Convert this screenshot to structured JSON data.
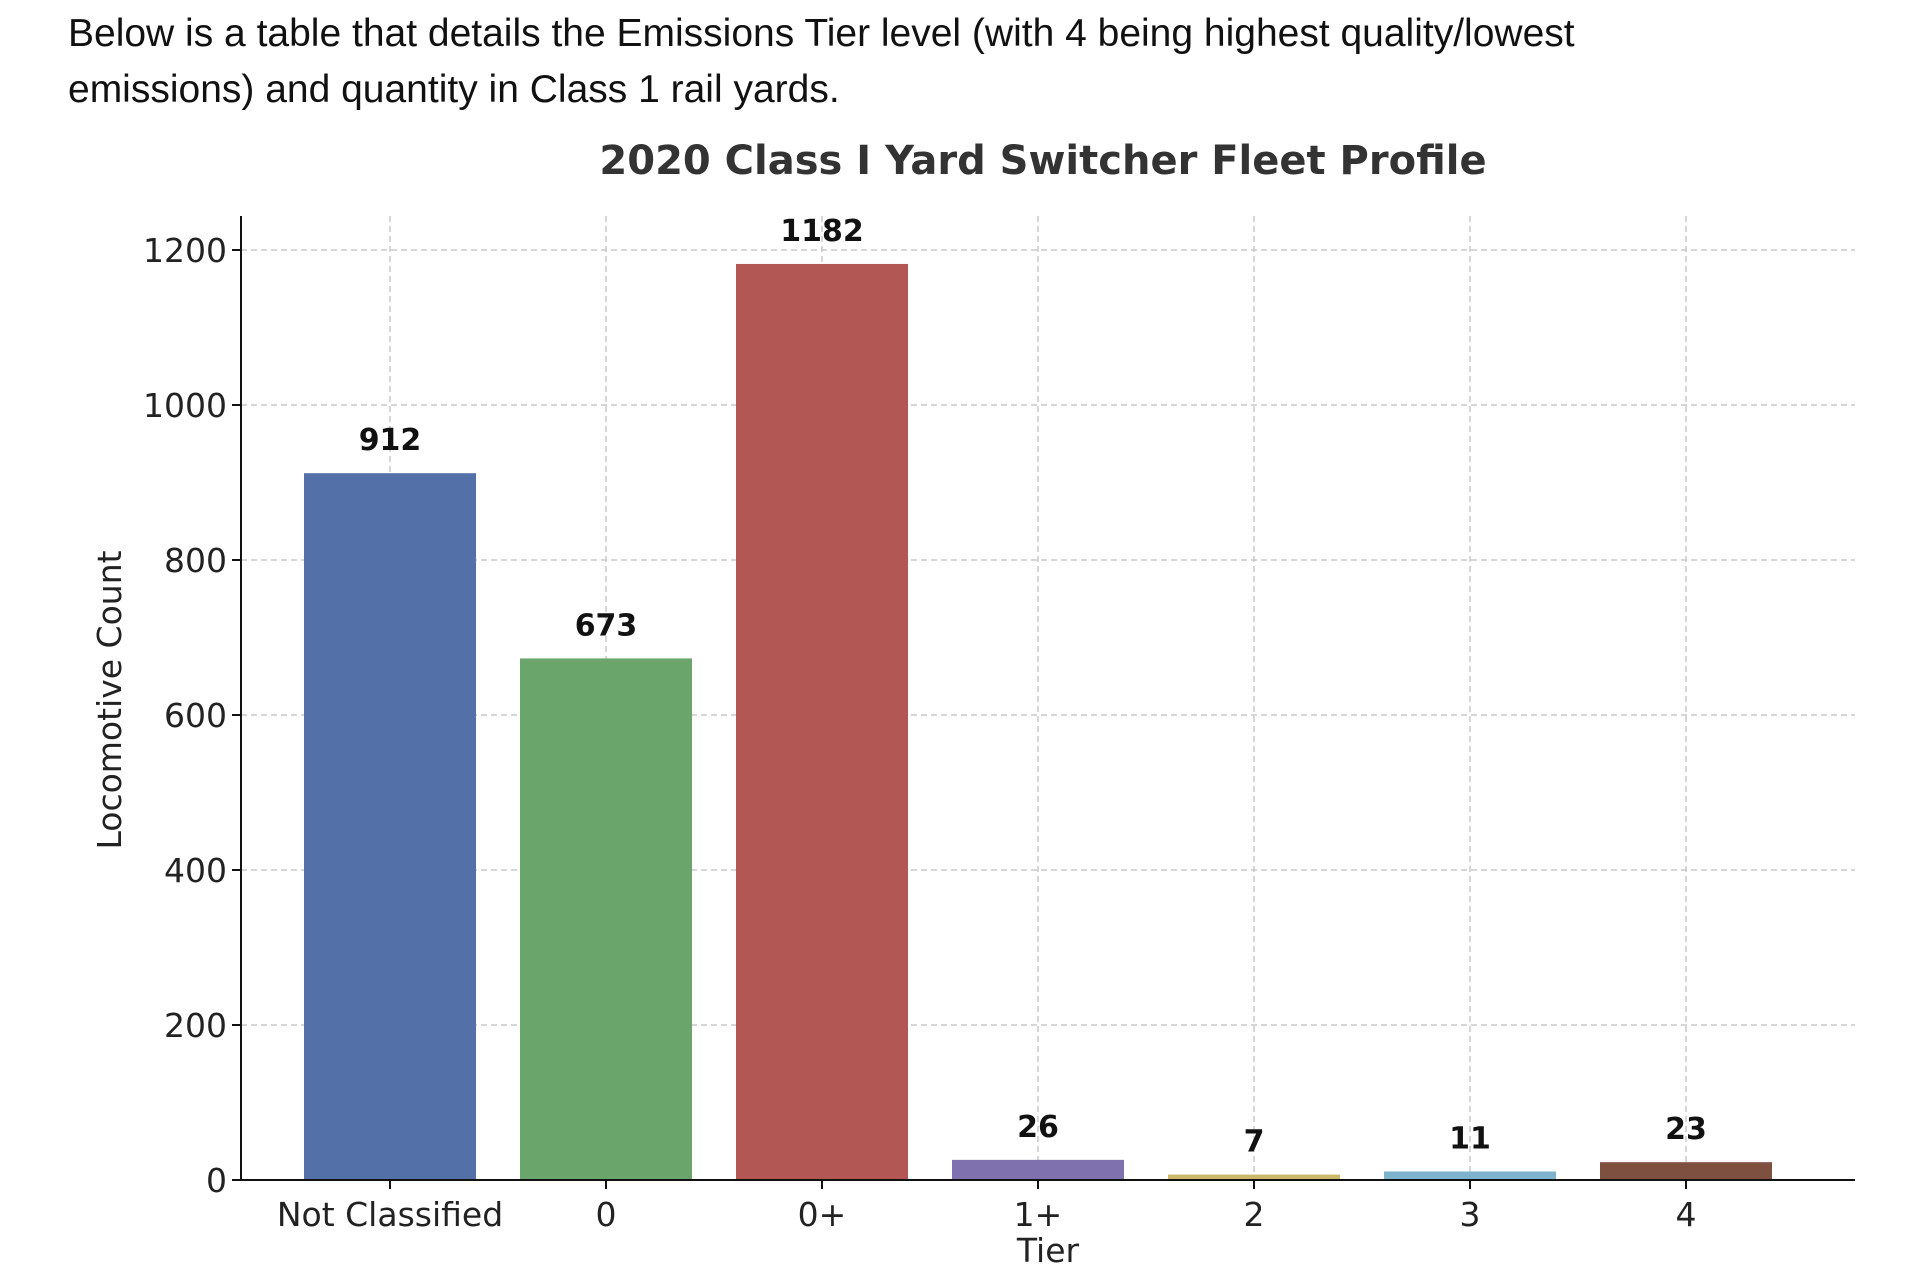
{
  "intro": {
    "line1": "Below is a table that details the Emissions Tier level (with 4 being highest quality/lowest",
    "line2": "emissions) and quantity in Class 1 rail yards."
  },
  "chart_data": {
    "type": "bar",
    "title": "2020 Class I Yard Switcher Fleet Profile",
    "xlabel": "Tier",
    "ylabel": "Locomotive Count",
    "categories": [
      "Not Classified",
      "0",
      "0+",
      "1+",
      "2",
      "3",
      "4"
    ],
    "values": [
      912,
      673,
      1182,
      26,
      7,
      11,
      23
    ],
    "data_labels": [
      "912",
      "673",
      "1182",
      "26",
      "7",
      "11",
      "23"
    ],
    "colors": [
      "#5470a8",
      "#6aa56c",
      "#b25753",
      "#7f70ae",
      "#cdb769",
      "#7db3cc",
      "#7e5040"
    ],
    "ylim": [
      0,
      1240
    ],
    "yticks": [
      0,
      200,
      400,
      600,
      800,
      1000,
      1200
    ],
    "ytick_labels": [
      "0",
      "200",
      "400",
      "600",
      "800",
      "1000",
      "1200"
    ],
    "grid": true,
    "legend": "none"
  }
}
